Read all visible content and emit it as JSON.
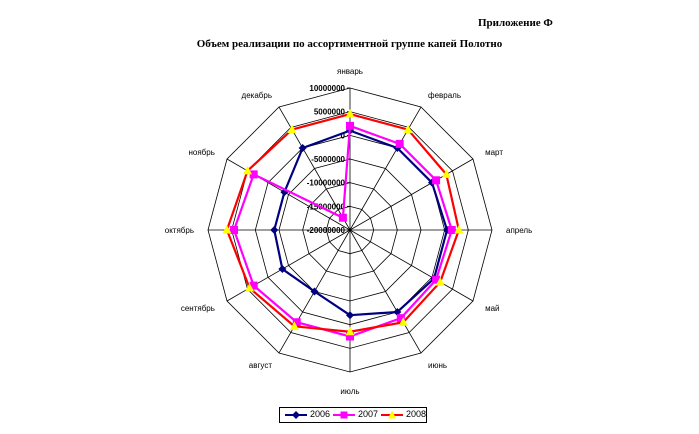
{
  "header": {
    "appendix_label": "Приложение Ф"
  },
  "chart_data": {
    "type": "radar",
    "title": "Объем реализации по ассортиментной группе капей Полотно",
    "categories": [
      "январь",
      "февраль",
      "март",
      "апрель",
      "май",
      "июнь",
      "июль",
      "август",
      "сентябрь",
      "октябрь",
      "ноябрь",
      "декабрь"
    ],
    "radial_ticks": [
      10000000,
      5000000,
      0,
      -5000000,
      -10000000,
      -15000000,
      -20000000
    ],
    "radial_tick_labels": [
      "10000000",
      "5000000",
      "0",
      "-5000000",
      "-10000000",
      "-15000000",
      "-20000000"
    ],
    "rlim": [
      -20000000,
      10000000
    ],
    "grid": true,
    "legend_position": "bottom",
    "series": [
      {
        "name": "2006",
        "color": "#000080",
        "marker": "diamond",
        "values": [
          1000000,
          0,
          0,
          500000,
          500000,
          0,
          -2000000,
          -5000000,
          -3500000,
          -4000000,
          -4000000,
          0
        ]
      },
      {
        "name": "2007",
        "color": "#ff00ff",
        "marker": "square",
        "values": [
          2000000,
          1000000,
          1000000,
          1500000,
          1000000,
          1500000,
          2500000,
          2500000,
          3500000,
          4500000,
          3500000,
          -17000000
        ]
      },
      {
        "name": "2008",
        "color": "#ff0000",
        "marker_color": "#ffff00",
        "marker": "triangle",
        "values": [
          4500000,
          4500000,
          3500000,
          3000000,
          2000000,
          2500000,
          1500000,
          3500000,
          4500000,
          6000000,
          5000000,
          4500000
        ]
      }
    ]
  }
}
